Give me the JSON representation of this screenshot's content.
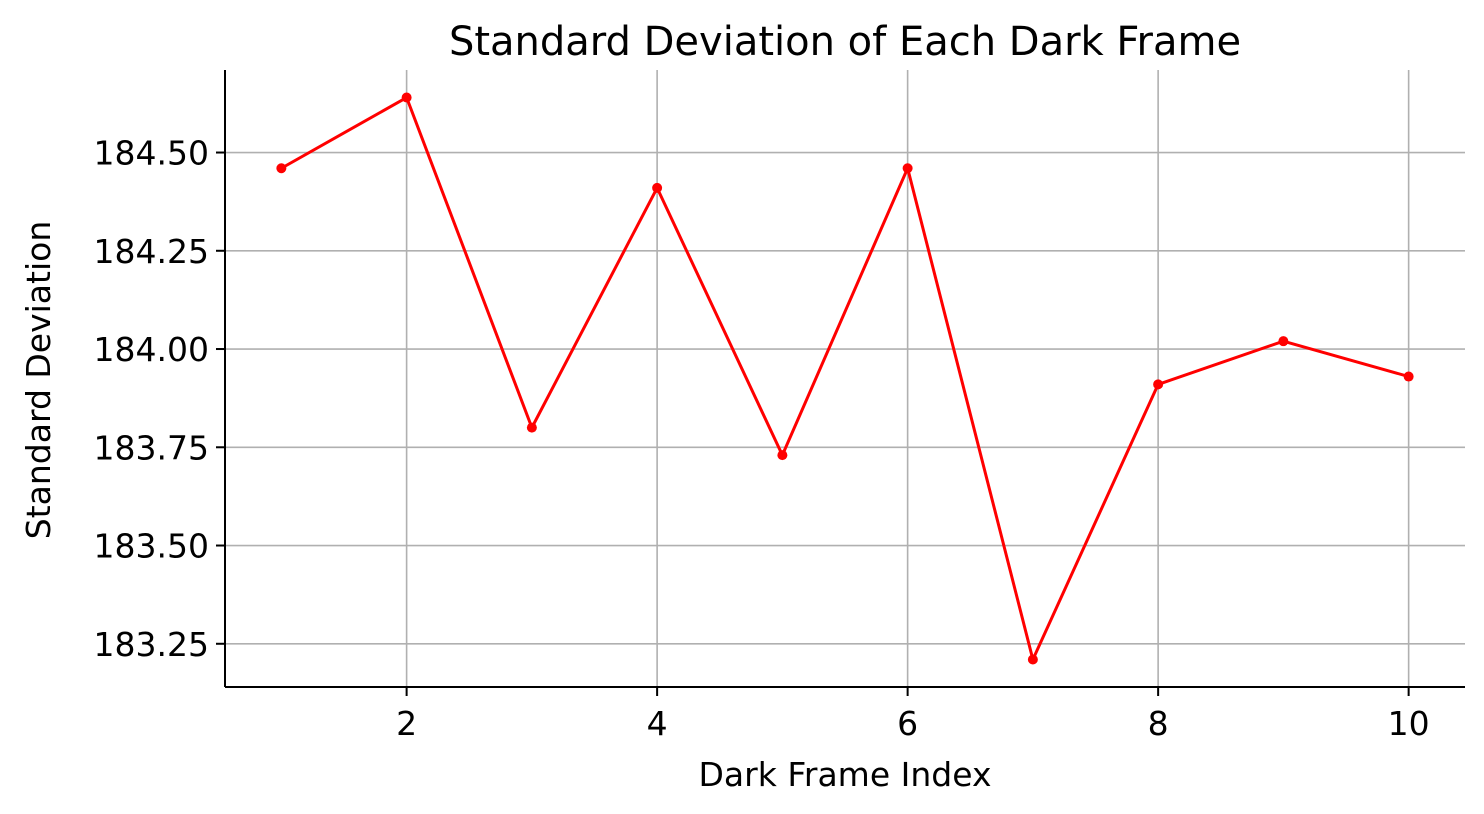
{
  "chart_data": {
    "type": "line",
    "title": "Standard Deviation of Each Dark Frame",
    "xlabel": "Dark Frame Index",
    "ylabel": "Standard Deviation",
    "x": [
      1,
      2,
      3,
      4,
      5,
      6,
      7,
      8,
      9,
      10
    ],
    "series": [
      {
        "values": [
          184.46,
          184.64,
          183.8,
          184.41,
          183.73,
          184.46,
          183.21,
          183.91,
          184.02,
          183.93
        ],
        "color": "#ff0000",
        "marker": "circle"
      }
    ],
    "xticks": [
      2,
      4,
      6,
      8,
      10
    ],
    "xtick_labels": [
      "2",
      "4",
      "6",
      "8",
      "10"
    ],
    "yticks": [
      183.25,
      183.5,
      183.75,
      184.0,
      184.25,
      184.5
    ],
    "ytick_labels": [
      "183.25",
      "183.50",
      "183.75",
      "184.00",
      "184.25",
      "184.50"
    ],
    "xlim": [
      0.55,
      10.45
    ],
    "ylim": [
      183.14,
      184.71
    ],
    "grid": true,
    "spines": "left-bottom"
  }
}
